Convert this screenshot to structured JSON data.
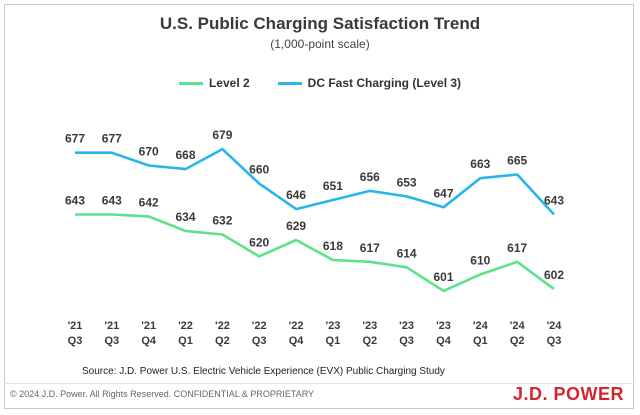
{
  "chart_data": {
    "type": "line",
    "title": "U.S. Public Charging Satisfaction Trend",
    "subtitle": "(1,000-point scale)",
    "categories": [
      [
        "'21",
        "Q3"
      ],
      [
        "'21",
        "Q3"
      ],
      [
        "'21",
        "Q4"
      ],
      [
        "'22",
        "Q1"
      ],
      [
        "'22",
        "Q2"
      ],
      [
        "'22",
        "Q3"
      ],
      [
        "'22",
        "Q4"
      ],
      [
        "'23",
        "Q1"
      ],
      [
        "'23",
        "Q2"
      ],
      [
        "'23",
        "Q3"
      ],
      [
        "'23",
        "Q4"
      ],
      [
        "'24",
        "Q1"
      ],
      [
        "'24",
        "Q2"
      ],
      [
        "'24",
        "Q3"
      ]
    ],
    "series": [
      {
        "name": "Level 2",
        "color": "#5de28a",
        "values": [
          643,
          643,
          642,
          634,
          632,
          620,
          629,
          618,
          617,
          614,
          601,
          610,
          617,
          602
        ]
      },
      {
        "name": "DC Fast Charging (Level 3)",
        "color": "#29b5ea",
        "values": [
          677,
          677,
          670,
          668,
          679,
          660,
          646,
          651,
          656,
          653,
          647,
          663,
          665,
          643
        ]
      }
    ],
    "ylim": [
      596,
      684
    ],
    "grid": false,
    "legend_position": "top"
  },
  "source": "Source: J.D. Power U.S. Electric Vehicle Experience (EVX) Public Charging Study",
  "copyright": "© 2024 J.D. Power. All Rights Reserved. CONFIDENTIAL & PROPRIETARY",
  "brand": "J.D. POWER"
}
